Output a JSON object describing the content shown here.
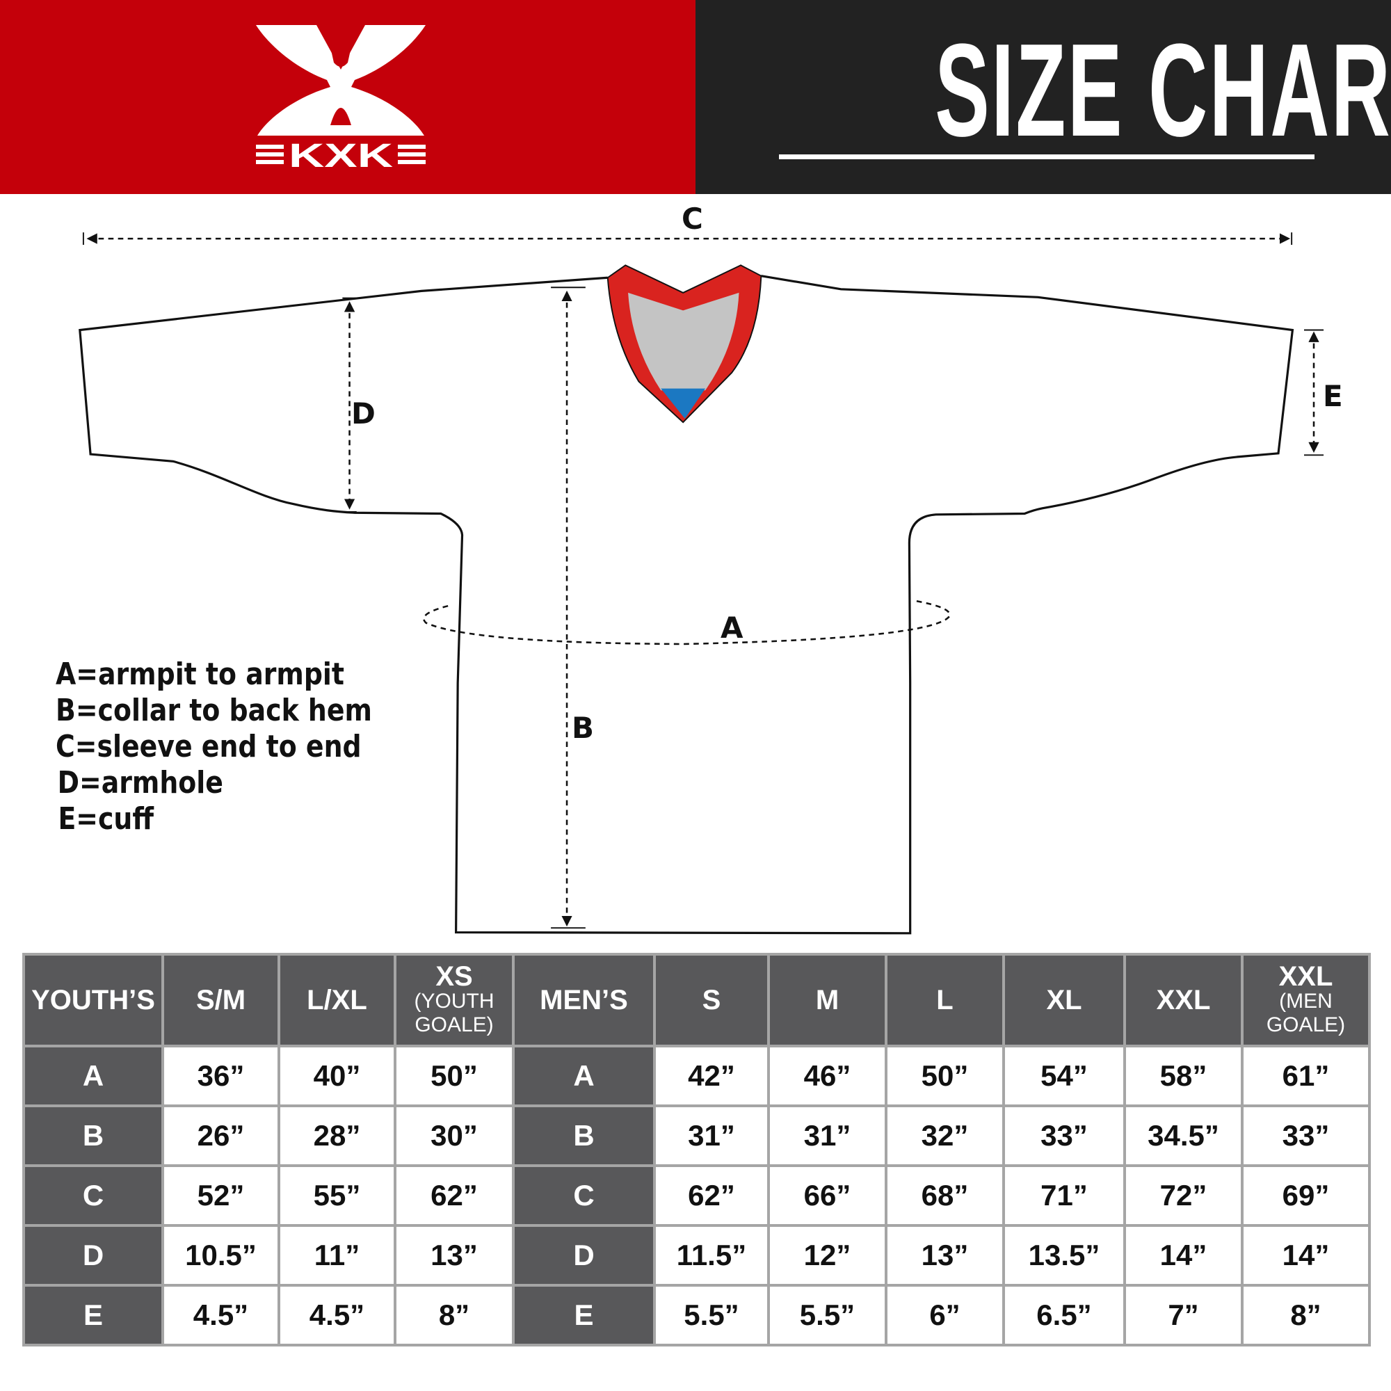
{
  "brand": {
    "logo_text": "KXK",
    "colors": {
      "red": "#c4000a",
      "dark": "#222222",
      "table_header": "#58585a"
    }
  },
  "header": {
    "title": "SIZE CHART"
  },
  "diagram": {
    "labels": {
      "a": "A",
      "b": "B",
      "c": "C",
      "d": "D",
      "e": "E"
    },
    "legend": [
      "A=armpit to armpit",
      "B=collar to back hem",
      "C=sleeve end to end",
      "D=armhole",
      "E=cuff"
    ]
  },
  "table": {
    "columns": [
      {
        "main": "YOUTH’S",
        "sub": ""
      },
      {
        "main": "S/M",
        "sub": ""
      },
      {
        "main": "L/XL",
        "sub": ""
      },
      {
        "main": "XS",
        "sub": "(YOUTH GOALE)"
      },
      {
        "main": "MEN’S",
        "sub": ""
      },
      {
        "main": "S",
        "sub": ""
      },
      {
        "main": "M",
        "sub": ""
      },
      {
        "main": "L",
        "sub": ""
      },
      {
        "main": "XL",
        "sub": ""
      },
      {
        "main": "XXL",
        "sub": ""
      },
      {
        "main": "XXL",
        "sub": "(MEN GOALE)"
      }
    ],
    "rows": [
      [
        "A",
        "36”",
        "40”",
        "50”",
        "A",
        "42”",
        "46”",
        "50”",
        "54”",
        "58”",
        "61”"
      ],
      [
        "B",
        "26”",
        "28”",
        "30”",
        "B",
        "31”",
        "31”",
        "32”",
        "33”",
        "34.5”",
        "33”"
      ],
      [
        "C",
        "52”",
        "55”",
        "62”",
        "C",
        "62”",
        "66”",
        "68”",
        "71”",
        "72”",
        "69”"
      ],
      [
        "D",
        "10.5”",
        "11”",
        "13”",
        "D",
        "11.5”",
        "12”",
        "13”",
        "13.5”",
        "14”",
        "14”"
      ],
      [
        "E",
        "4.5”",
        "4.5”",
        "8”",
        "E",
        "5.5”",
        "5.5”",
        "6”",
        "6.5”",
        "7”",
        "8”"
      ]
    ]
  }
}
